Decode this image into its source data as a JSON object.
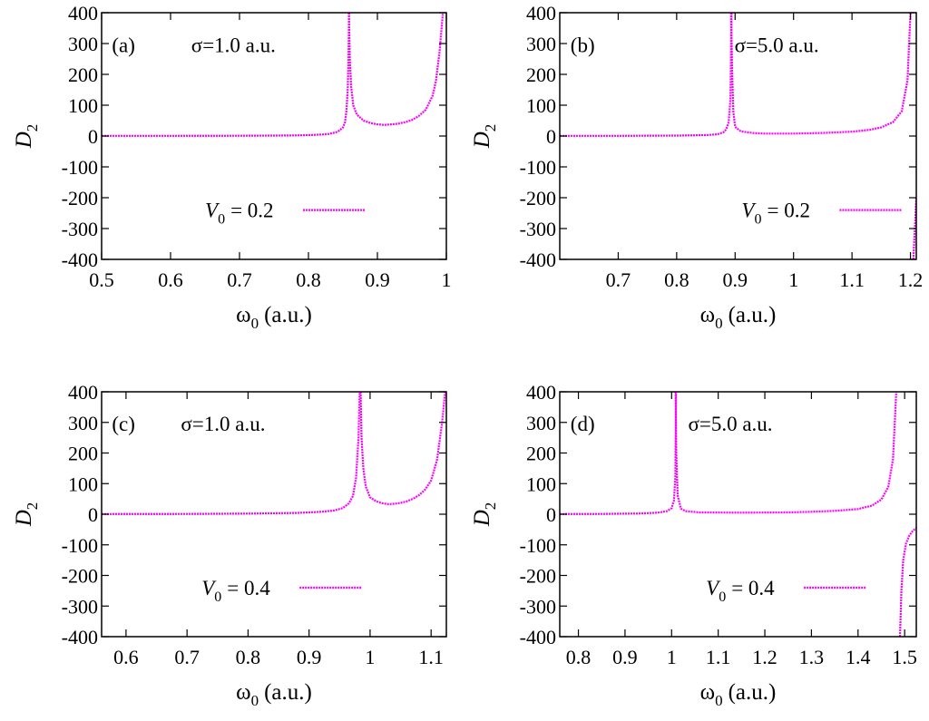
{
  "chart_data": [
    {
      "type": "line",
      "panel_label": "(a)",
      "annotation": "σ=1.0 a.u.",
      "xlabel_main": "ω",
      "xlabel_sub": "0",
      "xlabel_unit": "(a.u.)",
      "ylabel_main": "D",
      "ylabel_sub": "2",
      "xlim": [
        0.5,
        1.0
      ],
      "ylim": [
        -400,
        400
      ],
      "xticks": [
        0.5,
        0.6,
        0.7,
        0.8,
        0.9,
        1.0
      ],
      "xtick_labels": [
        "0.5",
        "0.6",
        "0.7",
        "0.8",
        "0.9",
        "1"
      ],
      "yticks": [
        -400,
        -300,
        -200,
        -100,
        0,
        100,
        200,
        300,
        400
      ],
      "ytick_labels": [
        "-400",
        "-300",
        "-200",
        "-100",
        "0",
        "100",
        "200",
        "300",
        "400"
      ],
      "legend": {
        "label_main": "V",
        "label_sub": "0",
        "label_rest": "= 0.2",
        "placement": "lower-center"
      },
      "line_color": "#ff00ff",
      "series": [
        {
          "segments": [
            [
              [
                0.5,
                0.5
              ],
              [
                0.6,
                0.6
              ],
              [
                0.7,
                1.0
              ],
              [
                0.75,
                1.4
              ],
              [
                0.78,
                2.0
              ],
              [
                0.8,
                3.0
              ],
              [
                0.82,
                5.0
              ],
              [
                0.83,
                7.0
              ],
              [
                0.84,
                12
              ],
              [
                0.845,
                18
              ],
              [
                0.85,
                28
              ],
              [
                0.853,
                45
              ],
              [
                0.855,
                80
              ],
              [
                0.857,
                150
              ],
              [
                0.858,
                250
              ],
              [
                0.859,
                400
              ]
            ],
            [
              [
                0.8585,
                400
              ],
              [
                0.86,
                250
              ],
              [
                0.862,
                160
              ],
              [
                0.865,
                100
              ],
              [
                0.87,
                70
              ],
              [
                0.88,
                50
              ],
              [
                0.89,
                42
              ],
              [
                0.9,
                38
              ],
              [
                0.91,
                36
              ],
              [
                0.92,
                38
              ],
              [
                0.93,
                40
              ],
              [
                0.94,
                45
              ],
              [
                0.95,
                52
              ],
              [
                0.96,
                65
              ],
              [
                0.97,
                85
              ],
              [
                0.98,
                130
              ],
              [
                0.985,
                180
              ],
              [
                0.99,
                270
              ],
              [
                0.995,
                400
              ]
            ]
          ]
        }
      ]
    },
    {
      "type": "line",
      "panel_label": "(b)",
      "annotation": "σ=5.0 a.u.",
      "xlabel_main": "ω",
      "xlabel_sub": "0",
      "xlabel_unit": "(a.u.)",
      "ylabel_main": "D",
      "ylabel_sub": "2",
      "xlim": [
        0.6,
        1.21
      ],
      "ylim": [
        -400,
        400
      ],
      "xticks": [
        0.7,
        0.8,
        0.9,
        1.0,
        1.1,
        1.2
      ],
      "xtick_labels": [
        "0.7",
        "0.8",
        "0.9",
        "1",
        "1.1",
        "1.2"
      ],
      "yticks": [
        -400,
        -300,
        -200,
        -100,
        0,
        100,
        200,
        300,
        400
      ],
      "ytick_labels": [
        "-400",
        "-300",
        "-200",
        "-100",
        "0",
        "100",
        "200",
        "300",
        "400"
      ],
      "legend": {
        "label_main": "V",
        "label_sub": "0",
        "label_rest": "= 0.2",
        "placement": "lower-right"
      },
      "line_color": "#ff00ff",
      "series": [
        {
          "segments": [
            [
              [
                0.6,
                0.5
              ],
              [
                0.7,
                0.7
              ],
              [
                0.8,
                1.5
              ],
              [
                0.85,
                3
              ],
              [
                0.87,
                6
              ],
              [
                0.88,
                12
              ],
              [
                0.885,
                22
              ],
              [
                0.889,
                45
              ],
              [
                0.892,
                120
              ],
              [
                0.894,
                400
              ]
            ],
            [
              [
                0.893,
                400
              ],
              [
                0.895,
                200
              ],
              [
                0.897,
                80
              ],
              [
                0.9,
                30
              ],
              [
                0.91,
                15
              ],
              [
                0.93,
                10
              ],
              [
                0.95,
                8
              ],
              [
                1.0,
                8
              ],
              [
                1.05,
                10
              ],
              [
                1.1,
                14
              ],
              [
                1.13,
                20
              ],
              [
                1.15,
                28
              ],
              [
                1.17,
                45
              ],
              [
                1.185,
                80
              ],
              [
                1.195,
                180
              ],
              [
                1.2,
                400
              ]
            ],
            [
              [
                1.205,
                -400
              ],
              [
                1.21,
                -200
              ]
            ]
          ]
        }
      ]
    },
    {
      "type": "line",
      "panel_label": "(c)",
      "annotation": "σ=1.0 a.u.",
      "xlabel_main": "ω",
      "xlabel_sub": "0",
      "xlabel_unit": "(a.u.)",
      "ylabel_main": "D",
      "ylabel_sub": "2",
      "xlim": [
        0.56,
        1.125
      ],
      "ylim": [
        -400,
        400
      ],
      "xticks": [
        0.6,
        0.7,
        0.8,
        0.9,
        1.0,
        1.1
      ],
      "xtick_labels": [
        "0.6",
        "0.7",
        "0.8",
        "0.9",
        "1",
        "1.1"
      ],
      "yticks": [
        -400,
        -300,
        -200,
        -100,
        0,
        100,
        200,
        300,
        400
      ],
      "ytick_labels": [
        "-400",
        "-300",
        "-200",
        "-100",
        "0",
        "100",
        "200",
        "300",
        "400"
      ],
      "legend": {
        "label_main": "V",
        "label_sub": "0",
        "label_rest": "= 0.4",
        "placement": "lower-center"
      },
      "line_color": "#ff00ff",
      "series": [
        {
          "segments": [
            [
              [
                0.56,
                0.5
              ],
              [
                0.7,
                1.0
              ],
              [
                0.8,
                2.0
              ],
              [
                0.88,
                4
              ],
              [
                0.92,
                8
              ],
              [
                0.94,
                12
              ],
              [
                0.955,
                20
              ],
              [
                0.965,
                35
              ],
              [
                0.972,
                60
              ],
              [
                0.977,
                120
              ],
              [
                0.981,
                250
              ],
              [
                0.983,
                400
              ]
            ],
            [
              [
                0.9845,
                400
              ],
              [
                0.986,
                250
              ],
              [
                0.989,
                150
              ],
              [
                0.993,
                90
              ],
              [
                1.0,
                55
              ],
              [
                1.01,
                42
              ],
              [
                1.02,
                36
              ],
              [
                1.03,
                33
              ],
              [
                1.04,
                34
              ],
              [
                1.05,
                37
              ],
              [
                1.06,
                42
              ],
              [
                1.07,
                50
              ],
              [
                1.08,
                62
              ],
              [
                1.09,
                80
              ],
              [
                1.1,
                110
              ],
              [
                1.11,
                180
              ],
              [
                1.118,
                300
              ],
              [
                1.123,
                400
              ]
            ]
          ]
        }
      ]
    },
    {
      "type": "line",
      "panel_label": "(d)",
      "annotation": "σ=5.0 a.u.",
      "xlabel_main": "ω",
      "xlabel_sub": "0",
      "xlabel_unit": "(a.u.)",
      "ylabel_main": "D",
      "ylabel_sub": "2",
      "xlim": [
        0.76,
        1.525
      ],
      "ylim": [
        -400,
        400
      ],
      "xticks": [
        0.8,
        0.9,
        1.0,
        1.1,
        1.2,
        1.3,
        1.4,
        1.5
      ],
      "xtick_labels": [
        "0.8",
        "0.9",
        "1",
        "1.1",
        "1.2",
        "1.3",
        "1.4",
        "1.5"
      ],
      "yticks": [
        -400,
        -300,
        -200,
        -100,
        0,
        100,
        200,
        300,
        400
      ],
      "ytick_labels": [
        "-400",
        "-300",
        "-200",
        "-100",
        "0",
        "100",
        "200",
        "300",
        "400"
      ],
      "legend": {
        "label_main": "V",
        "label_sub": "0",
        "label_rest": "= 0.4",
        "placement": "lower-right"
      },
      "line_color": "#ff00ff",
      "series": [
        {
          "segments": [
            [
              [
                0.76,
                0.5
              ],
              [
                0.85,
                1.0
              ],
              [
                0.93,
                2.5
              ],
              [
                0.97,
                5
              ],
              [
                0.99,
                10
              ],
              [
                1.0,
                20
              ],
              [
                1.005,
                45
              ],
              [
                1.008,
                120
              ],
              [
                1.0095,
                400
              ]
            ],
            [
              [
                1.0085,
                400
              ],
              [
                1.01,
                200
              ],
              [
                1.013,
                60
              ],
              [
                1.02,
                18
              ],
              [
                1.03,
                10
              ],
              [
                1.06,
                6
              ],
              [
                1.15,
                5
              ],
              [
                1.25,
                6
              ],
              [
                1.3,
                8
              ],
              [
                1.35,
                11
              ],
              [
                1.4,
                17
              ],
              [
                1.43,
                28
              ],
              [
                1.45,
                48
              ],
              [
                1.465,
                90
              ],
              [
                1.475,
                180
              ],
              [
                1.482,
                400
              ]
            ],
            [
              [
                1.49,
                -400
              ],
              [
                1.493,
                -250
              ],
              [
                1.497,
                -150
              ],
              [
                1.503,
                -95
              ],
              [
                1.51,
                -70
              ],
              [
                1.517,
                -55
              ],
              [
                1.525,
                -45
              ]
            ]
          ]
        }
      ]
    }
  ]
}
